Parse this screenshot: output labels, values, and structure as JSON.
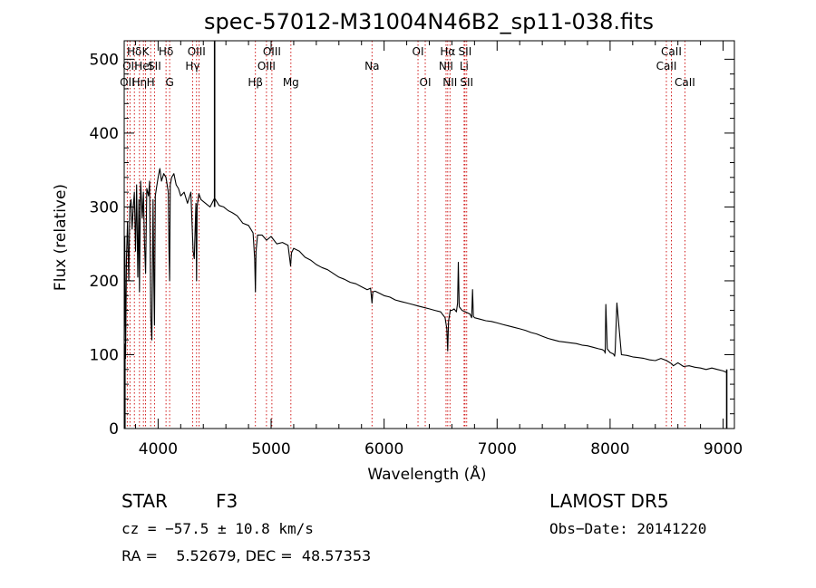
{
  "chart_data": {
    "type": "line",
    "title": "spec-57012-M31004N46B2_sp11-038.fits",
    "xlabel": "Wavelength (Å)",
    "ylabel": "Flux (relative)",
    "xlim": [
      3700,
      9100
    ],
    "ylim": [
      0,
      525
    ],
    "xticks": [
      4000,
      5000,
      6000,
      7000,
      8000,
      9000
    ],
    "yticks": [
      0,
      100,
      200,
      300,
      400,
      500
    ],
    "grid": false,
    "series": [
      {
        "x": [
          3700,
          3705,
          3712,
          3720,
          3730,
          3740,
          3750,
          3760,
          3770,
          3780,
          3790,
          3800,
          3810,
          3820,
          3830,
          3835,
          3845,
          3860,
          3870,
          3880,
          3889,
          3900,
          3915,
          3925,
          3935,
          3945,
          3955,
          3962,
          3968,
          3975,
          3985,
          4000,
          4015,
          4030,
          4050,
          4070,
          4090,
          4096,
          4102,
          4108,
          4120,
          4140,
          4160,
          4180,
          4200,
          4230,
          4260,
          4290,
          4310,
          4320,
          4335,
          4340,
          4345,
          4360,
          4380,
          4420,
          4460,
          4500,
          4540,
          4580,
          4620,
          4660,
          4700,
          4750,
          4800,
          4840,
          4855,
          4861,
          4867,
          4880,
          4920,
          4960,
          5000,
          5050,
          5100,
          5150,
          5172,
          5180,
          5200,
          5250,
          5300,
          5350,
          5400,
          5450,
          5500,
          5550,
          5600,
          5650,
          5700,
          5750,
          5800,
          5850,
          5880,
          5893,
          5900,
          5920,
          5960,
          6000,
          6050,
          6100,
          6150,
          6200,
          6250,
          6300,
          6350,
          6400,
          6450,
          6500,
          6540,
          6555,
          6563,
          6570,
          6585,
          6600,
          6620,
          6640,
          6650,
          6657,
          6665,
          6690,
          6720,
          6760,
          6775,
          6783,
          6790,
          6800,
          6850,
          6900,
          6950,
          7000,
          7050,
          7100,
          7150,
          7200,
          7250,
          7300,
          7350,
          7400,
          7450,
          7500,
          7550,
          7600,
          7650,
          7700,
          7750,
          7800,
          7850,
          7900,
          7930,
          7950,
          7957,
          7962,
          7975,
          8000,
          8030,
          8040,
          8045,
          8060,
          8100,
          8150,
          8200,
          8250,
          8300,
          8350,
          8400,
          8450,
          8500,
          8542,
          8560,
          8600,
          8650,
          8700,
          8750,
          8800,
          8850,
          8900,
          8950,
          9000,
          9030
        ],
        "y": [
          120,
          260,
          95,
          230,
          280,
          200,
          300,
          310,
          270,
          300,
          320,
          240,
          330,
          205,
          310,
          185,
          335,
          285,
          320,
          250,
          210,
          325,
          315,
          335,
          150,
          120,
          310,
          200,
          140,
          315,
          325,
          340,
          352,
          335,
          345,
          340,
          320,
          240,
          200,
          330,
          340,
          345,
          330,
          325,
          315,
          320,
          305,
          320,
          240,
          230,
          305,
          200,
          300,
          318,
          310,
          305,
          300,
          312,
          302,
          300,
          295,
          292,
          288,
          278,
          275,
          265,
          230,
          185,
          240,
          262,
          262,
          255,
          260,
          250,
          252,
          248,
          220,
          238,
          244,
          240,
          232,
          228,
          222,
          218,
          215,
          210,
          205,
          202,
          198,
          196,
          192,
          188,
          190,
          170,
          185,
          186,
          183,
          180,
          178,
          174,
          172,
          170,
          168,
          166,
          164,
          162,
          160,
          158,
          150,
          135,
          105,
          145,
          160,
          160,
          162,
          158,
          170,
          225,
          165,
          160,
          158,
          155,
          150,
          188,
          152,
          150,
          148,
          146,
          145,
          143,
          141,
          139,
          137,
          135,
          133,
          130,
          128,
          125,
          122,
          120,
          118,
          117,
          116,
          115,
          113,
          112,
          110,
          108,
          107,
          105,
          102,
          168,
          108,
          103,
          101,
          98,
          105,
          170,
          100,
          99,
          97,
          96,
          95,
          93,
          92,
          95,
          92,
          88,
          85,
          89,
          84,
          85,
          83,
          82,
          80,
          82,
          80,
          78,
          76
        ]
      }
    ],
    "spikes": [
      {
        "x": 4500,
        "top": 525,
        "base": 300
      },
      {
        "x": 3706,
        "top": 115,
        "base": 0
      },
      {
        "x": 9032,
        "top": 80,
        "base": 0
      }
    ],
    "spectral_lines": [
      {
        "x": 3727,
        "label": "OII",
        "row": 3
      },
      {
        "x": 3751,
        "label": "OII",
        "row": 2
      },
      {
        "x": 3790,
        "label": "Hδ",
        "row": 1
      },
      {
        "x": 3835,
        "label": "Hη",
        "row": 3
      },
      {
        "x": 3870,
        "label": "HeI",
        "row": 2
      },
      {
        "x": 3889,
        "label": "K",
        "row": 1
      },
      {
        "x": 3934,
        "label": "H",
        "row": 3
      },
      {
        "x": 3968,
        "label": "SII",
        "row": 2
      },
      {
        "x": 4070,
        "label": "Hδ",
        "row": 1
      },
      {
        "x": 4102,
        "label": "G",
        "row": 3
      },
      {
        "x": 4305,
        "label": "Hγ",
        "row": 2
      },
      {
        "x": 4340,
        "label": "OIII",
        "row": 1
      },
      {
        "x": 4363,
        "label": "",
        "row": 0
      },
      {
        "x": 4861,
        "label": "Hβ",
        "row": 3
      },
      {
        "x": 4959,
        "label": "OIII",
        "row": 2
      },
      {
        "x": 5007,
        "label": "OIII",
        "row": 1
      },
      {
        "x": 5175,
        "label": "Mg",
        "row": 3
      },
      {
        "x": 5893,
        "label": "Na",
        "row": 2
      },
      {
        "x": 6300,
        "label": "OI",
        "row": 1
      },
      {
        "x": 6364,
        "label": "OI",
        "row": 3
      },
      {
        "x": 6548,
        "label": "NII",
        "row": 2
      },
      {
        "x": 6563,
        "label": "Hα",
        "row": 1
      },
      {
        "x": 6583,
        "label": "NII",
        "row": 3
      },
      {
        "x": 6708,
        "label": "Li",
        "row": 2
      },
      {
        "x": 6716,
        "label": "SII",
        "row": 1
      },
      {
        "x": 6731,
        "label": "SII",
        "row": 3
      },
      {
        "x": 8498,
        "label": "CaII",
        "row": 2
      },
      {
        "x": 8542,
        "label": "CaII",
        "row": 1
      },
      {
        "x": 8662,
        "label": "CaII",
        "row": 3
      }
    ]
  },
  "info": {
    "class": "STAR",
    "subclass": "F3",
    "survey": "LAMOST DR5",
    "cz": "cz = −57.5 ± 10.8 km/s",
    "obs_date": "Obs−Date: 20141220",
    "radec": "RA =    5.52679, DEC =  48.57353"
  }
}
